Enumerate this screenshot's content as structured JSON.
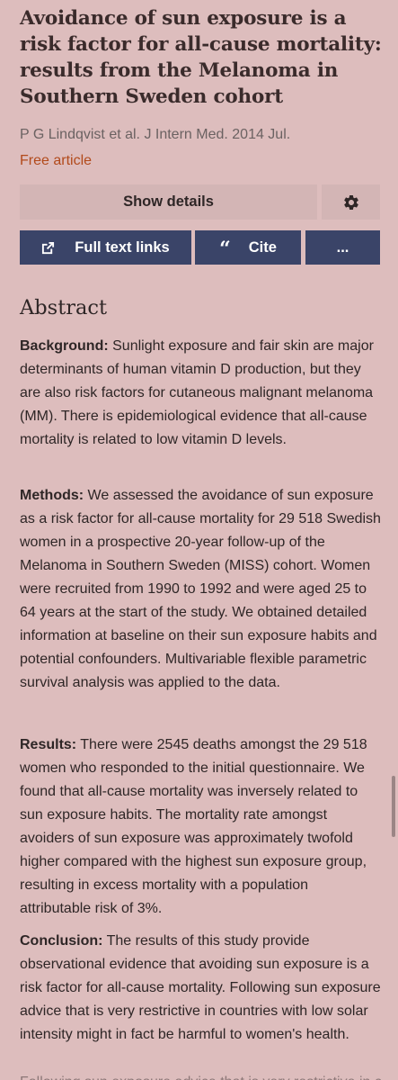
{
  "article": {
    "title": "Avoidance of sun exposure is a risk factor for all-cause mortality: results from the Melanoma in Southern Sweden cohort",
    "authors_citation": "P G Lindqvist et al. J Intern Med. 2014 Jul.",
    "free_label": "Free article"
  },
  "actions": {
    "show_details": "Show details",
    "settings_icon": "gear-icon",
    "full_text_links": "Full text links",
    "full_text_icon": "external-link-icon",
    "cite": "Cite",
    "cite_icon": "quote-icon",
    "more": "..."
  },
  "abstract": {
    "heading": "Abstract",
    "sections": [
      {
        "label": "Background:",
        "text": " Sunlight exposure and fair skin are major determinants of human vitamin D production, but they are also risk factors for cutaneous malignant melanoma (MM). There is epidemiological evidence that all-cause mortality is related to low vitamin D levels."
      },
      {
        "label": "Methods:",
        "text": " We assessed the avoidance of sun exposure as a risk factor for all-cause mortality for 29 518 Swedish women in a prospective 20-year follow-up of the Melanoma in Southern Sweden (MISS) cohort. Women were recruited from 1990 to 1992 and were aged 25 to 64 years at the start of the study. We obtained detailed information at baseline on their sun exposure habits and potential confounders. Multivariable flexible parametric survival analysis was applied to the data."
      },
      {
        "label": "Results:",
        "text": " There were 2545 deaths amongst the 29 518 women who responded to the initial questionnaire. We found that all-cause mortality was inversely related to sun exposure habits. The mortality rate amongst avoiders of sun exposure was approximately twofold higher compared with the highest sun exposure group, resulting in excess mortality with a population attributable risk of 3%."
      },
      {
        "label": "Conclusion:",
        "text": " The results of this study provide observational evidence that avoiding sun exposure is a risk factor for all-cause mortality. Following sun exposure advice that is very restrictive in countries with low solar intensity might in fact be harmful to women's health."
      }
    ],
    "cut_off_line": "Following sun exposure advice that is very restrictive in countries"
  },
  "colors": {
    "background": "#ddbdbd",
    "button_light": "#d3b5b5",
    "button_dark": "#3a4468",
    "free_article": "#b24a1b"
  }
}
